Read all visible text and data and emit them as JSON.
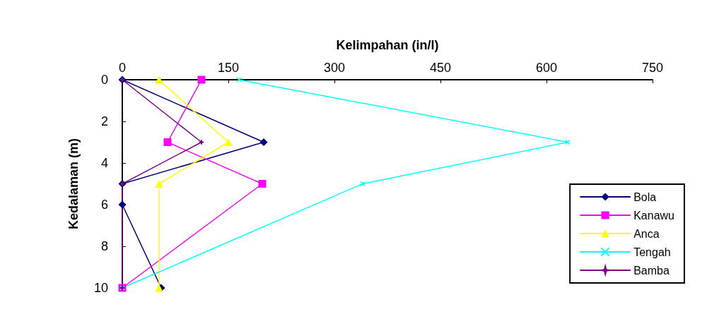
{
  "chart_data": {
    "type": "line",
    "xlabel": "Kelimpahan (in/l)",
    "ylabel": "Kedalaman (m)",
    "xlim": [
      0,
      750
    ],
    "xticks": [
      0,
      150,
      300,
      450,
      600,
      750
    ],
    "ylim": [
      10,
      0
    ],
    "yticks": [
      0,
      2,
      4,
      6,
      8,
      10
    ],
    "grid": false,
    "legend": "bottom right",
    "line_style": "solid",
    "series": [
      {
        "name": "Bola",
        "color": "#000080",
        "marker": "diamond",
        "x": [
          0,
          200,
          0,
          0,
          55
        ],
        "values": [
          0,
          3,
          5,
          6,
          10
        ]
      },
      {
        "name": "Kanawu",
        "color": "#ff00ff",
        "marker": "square",
        "x": [
          112,
          64,
          198,
          0
        ],
        "values": [
          0,
          3,
          5,
          10
        ]
      },
      {
        "name": "Anca",
        "color": "#ffff00",
        "marker": "triangle",
        "x": [
          52,
          150,
          52,
          52
        ],
        "values": [
          0,
          3,
          5,
          10
        ]
      },
      {
        "name": "Tengah",
        "color": "#00ffff",
        "marker": "cross",
        "x": [
          165,
          630,
          340,
          0
        ],
        "values": [
          0,
          3,
          5,
          10
        ]
      },
      {
        "name": "Bamba",
        "color": "#800080",
        "marker": "star",
        "x": [
          0,
          112,
          0,
          0
        ],
        "values": [
          0,
          3,
          5,
          10
        ]
      }
    ]
  }
}
